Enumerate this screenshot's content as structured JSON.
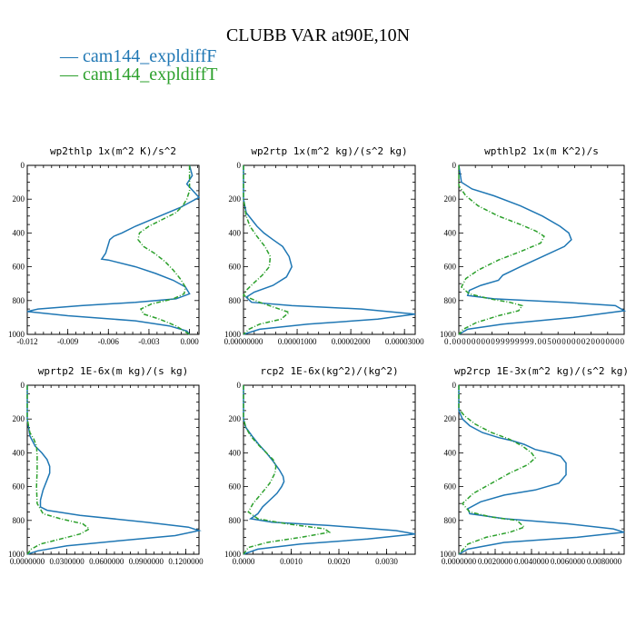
{
  "title": "CLUBB VAR at90E,10N",
  "legend": [
    {
      "label": "cam144_expldiffF",
      "color": "#1f77b4",
      "symbol": "—"
    },
    {
      "label": "cam144_expldiffT",
      "color": "#2ca02c",
      "symbol": "—"
    }
  ],
  "chart_data": [
    {
      "type": "line",
      "title": "wp2thlp   1x(m^2 K)/s^2",
      "xlim": [
        -0.012,
        0.0007
      ],
      "ylim": [
        1000,
        0
      ],
      "xticks": [
        -0.012,
        -0.009,
        -0.006,
        -0.003,
        0.0
      ],
      "xticklabels": [
        "-0.012",
        "-0.009",
        "-0.006",
        "-0.003",
        "0.000"
      ],
      "yticks": [
        0,
        200,
        400,
        600,
        800,
        1000
      ],
      "yticklabels": [
        "0",
        "200",
        "400",
        "600",
        "800",
        "1000"
      ],
      "series": [
        {
          "name": "cam144_expldiffF",
          "x": [
            0.0,
            0.0002,
            -0.0002,
            0.0007,
            -0.0007,
            -0.0025,
            -0.004,
            -0.005,
            -0.0056,
            -0.0059,
            -0.0062,
            -0.0065,
            -0.006,
            -0.004,
            -0.0025,
            -0.0012,
            -0.0003,
            0.0,
            -0.001,
            -0.004,
            -0.008,
            -0.0112,
            -0.012,
            -0.009,
            -0.004,
            -0.0015,
            -0.0002,
            0.0
          ],
          "y": [
            0,
            60,
            110,
            190,
            250,
            310,
            360,
            400,
            420,
            440,
            520,
            555,
            560,
            600,
            640,
            680,
            720,
            760,
            790,
            810,
            830,
            850,
            865,
            890,
            920,
            950,
            980,
            1000
          ]
        },
        {
          "name": "cam144_expldiffT",
          "x": [
            0.0,
            0.0,
            -0.0002,
            -0.0005,
            -0.001,
            -0.002,
            -0.003,
            -0.0037,
            -0.0038,
            -0.0034,
            -0.0026,
            -0.0018,
            -0.0012,
            -0.0007,
            -0.0003,
            -0.0004,
            -0.0012,
            -0.0028,
            -0.0036,
            -0.0034,
            -0.0022,
            -0.001,
            -0.0004,
            0.0
          ],
          "y": [
            0,
            150,
            200,
            240,
            280,
            320,
            360,
            400,
            440,
            480,
            520,
            570,
            620,
            670,
            720,
            760,
            790,
            820,
            850,
            880,
            910,
            950,
            980,
            1000
          ]
        }
      ]
    },
    {
      "type": "line",
      "title": "wp2rtp   1x(m^2 kg)/(s^2 kg)",
      "xlim": [
        0.0,
        3.2e-05
      ],
      "ylim": [
        1000,
        0
      ],
      "xticks": [
        0.0,
        1e-05,
        2e-05,
        3e-05
      ],
      "xticklabels": [
        "0.00000000",
        "0.00001000",
        "0.00002000",
        "0.00003000"
      ],
      "yticks": [
        0,
        200,
        400,
        600,
        800,
        1000
      ],
      "yticklabels": [
        "0",
        "200",
        "400",
        "600",
        "800",
        "1000"
      ],
      "series": [
        {
          "name": "cam144_expldiffF",
          "x": [
            0.0,
            0.0,
            5e-07,
            1.5e-06,
            2.5e-06,
            3.8e-06,
            5.5e-06,
            7.3e-06,
            8.5e-06,
            9e-06,
            8e-06,
            5.5e-06,
            2e-06,
            5e-07,
            1.5e-06,
            9e-06,
            2.2e-05,
            3.2e-05,
            2.5e-05,
            1.2e-05,
            3e-06,
            0.0
          ],
          "y": [
            0,
            200,
            280,
            320,
            360,
            400,
            440,
            480,
            540,
            600,
            660,
            710,
            750,
            780,
            810,
            830,
            850,
            880,
            910,
            940,
            970,
            1000
          ]
        },
        {
          "name": "cam144_expldiffT",
          "x": [
            0.0,
            0.0,
            5e-07,
            1.2e-06,
            2.5e-06,
            4e-06,
            5e-06,
            4.8e-06,
            3.5e-06,
            1.8e-06,
            5e-07,
            0.0,
            3e-06,
            8.5e-06,
            7e-06,
            3e-06,
            1e-06,
            0.0
          ],
          "y": [
            0,
            200,
            300,
            360,
            420,
            480,
            540,
            600,
            650,
            700,
            740,
            770,
            810,
            870,
            910,
            940,
            970,
            1000
          ]
        }
      ]
    },
    {
      "type": "line",
      "title": "wpthlp2   1x(m K^2)/s",
      "xlim": [
        0.0,
        0.0188
      ],
      "ylim": [
        1000,
        0
      ],
      "xticks": [
        0.0
      ],
      "xticklabels": [
        "0.00000000099999999.005000000020000000"
      ],
      "yticks": [
        0,
        200,
        400,
        600,
        800,
        1000
      ],
      "yticklabels": [
        "0",
        "200",
        "400",
        "600",
        "800",
        "1000"
      ],
      "series": [
        {
          "name": "cam144_expldiffF",
          "x": [
            0.0,
            0.0003,
            0.0015,
            0.004,
            0.007,
            0.0095,
            0.0115,
            0.0125,
            0.0128,
            0.012,
            0.0095,
            0.007,
            0.005,
            0.0045,
            0.0025,
            0.0012,
            0.001,
            0.004,
            0.012,
            0.0178,
            0.0188,
            0.013,
            0.005,
            0.001,
            0.0
          ],
          "y": [
            0,
            100,
            140,
            180,
            240,
            300,
            360,
            400,
            440,
            480,
            540,
            600,
            650,
            680,
            710,
            740,
            770,
            790,
            810,
            830,
            860,
            900,
            940,
            970,
            1000
          ]
        },
        {
          "name": "cam144_expldiffT",
          "x": [
            0.0,
            0.0,
            0.0008,
            0.0022,
            0.0045,
            0.007,
            0.0088,
            0.0097,
            0.0093,
            0.007,
            0.0045,
            0.0022,
            0.0008,
            0.0003,
            0.0012,
            0.0035,
            0.0058,
            0.0072,
            0.0068,
            0.0045,
            0.002,
            0.0005,
            0.0
          ],
          "y": [
            0,
            120,
            180,
            240,
            300,
            350,
            390,
            420,
            460,
            510,
            560,
            620,
            670,
            720,
            760,
            790,
            810,
            830,
            860,
            890,
            930,
            970,
            1000
          ]
        }
      ]
    },
    {
      "type": "line",
      "title": "wprtp2   1E-6x(m kg)/(s kg)",
      "xlim": [
        0.0,
        0.13
      ],
      "ylim": [
        1000,
        0
      ],
      "xticks": [
        0.0,
        0.03,
        0.06,
        0.09,
        0.12
      ],
      "xticklabels": [
        "0.0000000",
        "0.0300000",
        "0.0600000",
        "0.0900000",
        "0.1200000"
      ],
      "yticks": [
        0,
        200,
        400,
        600,
        800,
        1000
      ],
      "yticklabels": [
        "0",
        "200",
        "400",
        "600",
        "800",
        "1000"
      ],
      "series": [
        {
          "name": "cam144_expldiffF",
          "x": [
            0.0,
            0.0,
            0.002,
            0.006,
            0.011,
            0.015,
            0.017,
            0.017,
            0.015,
            0.012,
            0.01,
            0.01,
            0.015,
            0.04,
            0.09,
            0.122,
            0.13,
            0.112,
            0.07,
            0.03,
            0.008,
            0.0
          ],
          "y": [
            0,
            200,
            300,
            360,
            400,
            440,
            480,
            520,
            560,
            620,
            680,
            720,
            740,
            770,
            810,
            840,
            860,
            890,
            920,
            950,
            980,
            1000
          ]
        },
        {
          "name": "cam144_expldiffT",
          "x": [
            0.0,
            0.0,
            0.002,
            0.005,
            0.007,
            0.0075,
            0.0075,
            0.007,
            0.0075,
            0.012,
            0.025,
            0.042,
            0.047,
            0.04,
            0.025,
            0.01,
            0.003,
            0.0
          ],
          "y": [
            0,
            200,
            280,
            320,
            360,
            420,
            500,
            600,
            700,
            760,
            790,
            820,
            850,
            880,
            910,
            940,
            970,
            1000
          ]
        }
      ]
    },
    {
      "type": "line",
      "title": "rcp2   1E-6x(kg^2)/(kg^2)",
      "xlim": [
        0.0,
        0.0036
      ],
      "ylim": [
        1000,
        0
      ],
      "xticks": [
        0.0,
        0.001,
        0.002,
        0.003
      ],
      "xticklabels": [
        "0.0000",
        "0.0010",
        "0.0020",
        "0.0030"
      ],
      "yticks": [
        0,
        200,
        400,
        600,
        800,
        1000
      ],
      "yticklabels": [
        "0",
        "200",
        "400",
        "600",
        "800",
        "1000"
      ],
      "series": [
        {
          "name": "cam144_expldiffF",
          "x": [
            0.0,
            0.0,
            5e-05,
            0.00018,
            0.00032,
            0.00048,
            0.00062,
            0.00075,
            0.00083,
            0.00085,
            0.0008,
            0.0007,
            0.00055,
            0.0004,
            0.0003,
            0.00015,
            0.0006,
            0.0018,
            0.0032,
            0.0036,
            0.0026,
            0.0012,
            0.0003,
            0.0
          ],
          "y": [
            0,
            200,
            250,
            300,
            350,
            400,
            450,
            500,
            540,
            570,
            600,
            640,
            680,
            720,
            760,
            790,
            810,
            830,
            860,
            880,
            910,
            940,
            970,
            1000
          ]
        },
        {
          "name": "cam144_expldiffT",
          "x": [
            0.0,
            0.0,
            5e-05,
            0.00015,
            0.0003,
            0.00048,
            0.00062,
            0.00068,
            0.00066,
            0.00055,
            0.00038,
            0.0002,
            0.0001,
            0.0003,
            0.0009,
            0.0017,
            0.0018,
            0.0012,
            0.0005,
            0.0001,
            0.0
          ],
          "y": [
            0,
            200,
            250,
            300,
            350,
            400,
            440,
            480,
            520,
            580,
            640,
            700,
            750,
            790,
            820,
            850,
            870,
            900,
            930,
            960,
            1000
          ]
        }
      ]
    },
    {
      "type": "line",
      "title": "wp2rcp   1E-3x(m^2 kg)/(s^2 kg)",
      "xlim": [
        0.0,
        0.0091
      ],
      "ylim": [
        1000,
        0
      ],
      "xticks": [
        0.0,
        0.002,
        0.004,
        0.006,
        0.008
      ],
      "xticklabels": [
        "0.0000000",
        "0.0020000",
        "0.0040000",
        "0.0060000",
        "0.0080000"
      ],
      "yticks": [
        0,
        200,
        400,
        600,
        800,
        1000
      ],
      "yticklabels": [
        "0",
        "200",
        "400",
        "600",
        "800",
        "1000"
      ],
      "series": [
        {
          "name": "cam144_expldiffF",
          "x": [
            0.0,
            0.0,
            0.0002,
            0.0006,
            0.0013,
            0.0022,
            0.003,
            0.0036,
            0.0042,
            0.005,
            0.0056,
            0.0059,
            0.0059,
            0.0055,
            0.0042,
            0.0025,
            0.0012,
            0.0005,
            0.0006,
            0.0025,
            0.006,
            0.0085,
            0.0091,
            0.0065,
            0.0025,
            0.0005,
            0.0
          ],
          "y": [
            0,
            150,
            200,
            240,
            280,
            310,
            330,
            350,
            380,
            400,
            420,
            460,
            530,
            580,
            620,
            650,
            690,
            730,
            760,
            790,
            820,
            850,
            870,
            900,
            930,
            970,
            1000
          ]
        },
        {
          "name": "cam144_expldiffT",
          "x": [
            0.0,
            0.0,
            0.0003,
            0.0009,
            0.0018,
            0.0028,
            0.0035,
            0.004,
            0.0042,
            0.0038,
            0.0028,
            0.0018,
            0.0008,
            0.0002,
            0.0006,
            0.0018,
            0.0032,
            0.0036,
            0.0028,
            0.0015,
            0.0005,
            0.0
          ],
          "y": [
            0,
            140,
            180,
            230,
            280,
            320,
            360,
            400,
            430,
            470,
            520,
            580,
            640,
            700,
            750,
            780,
            800,
            840,
            870,
            900,
            940,
            1000
          ]
        }
      ]
    }
  ]
}
